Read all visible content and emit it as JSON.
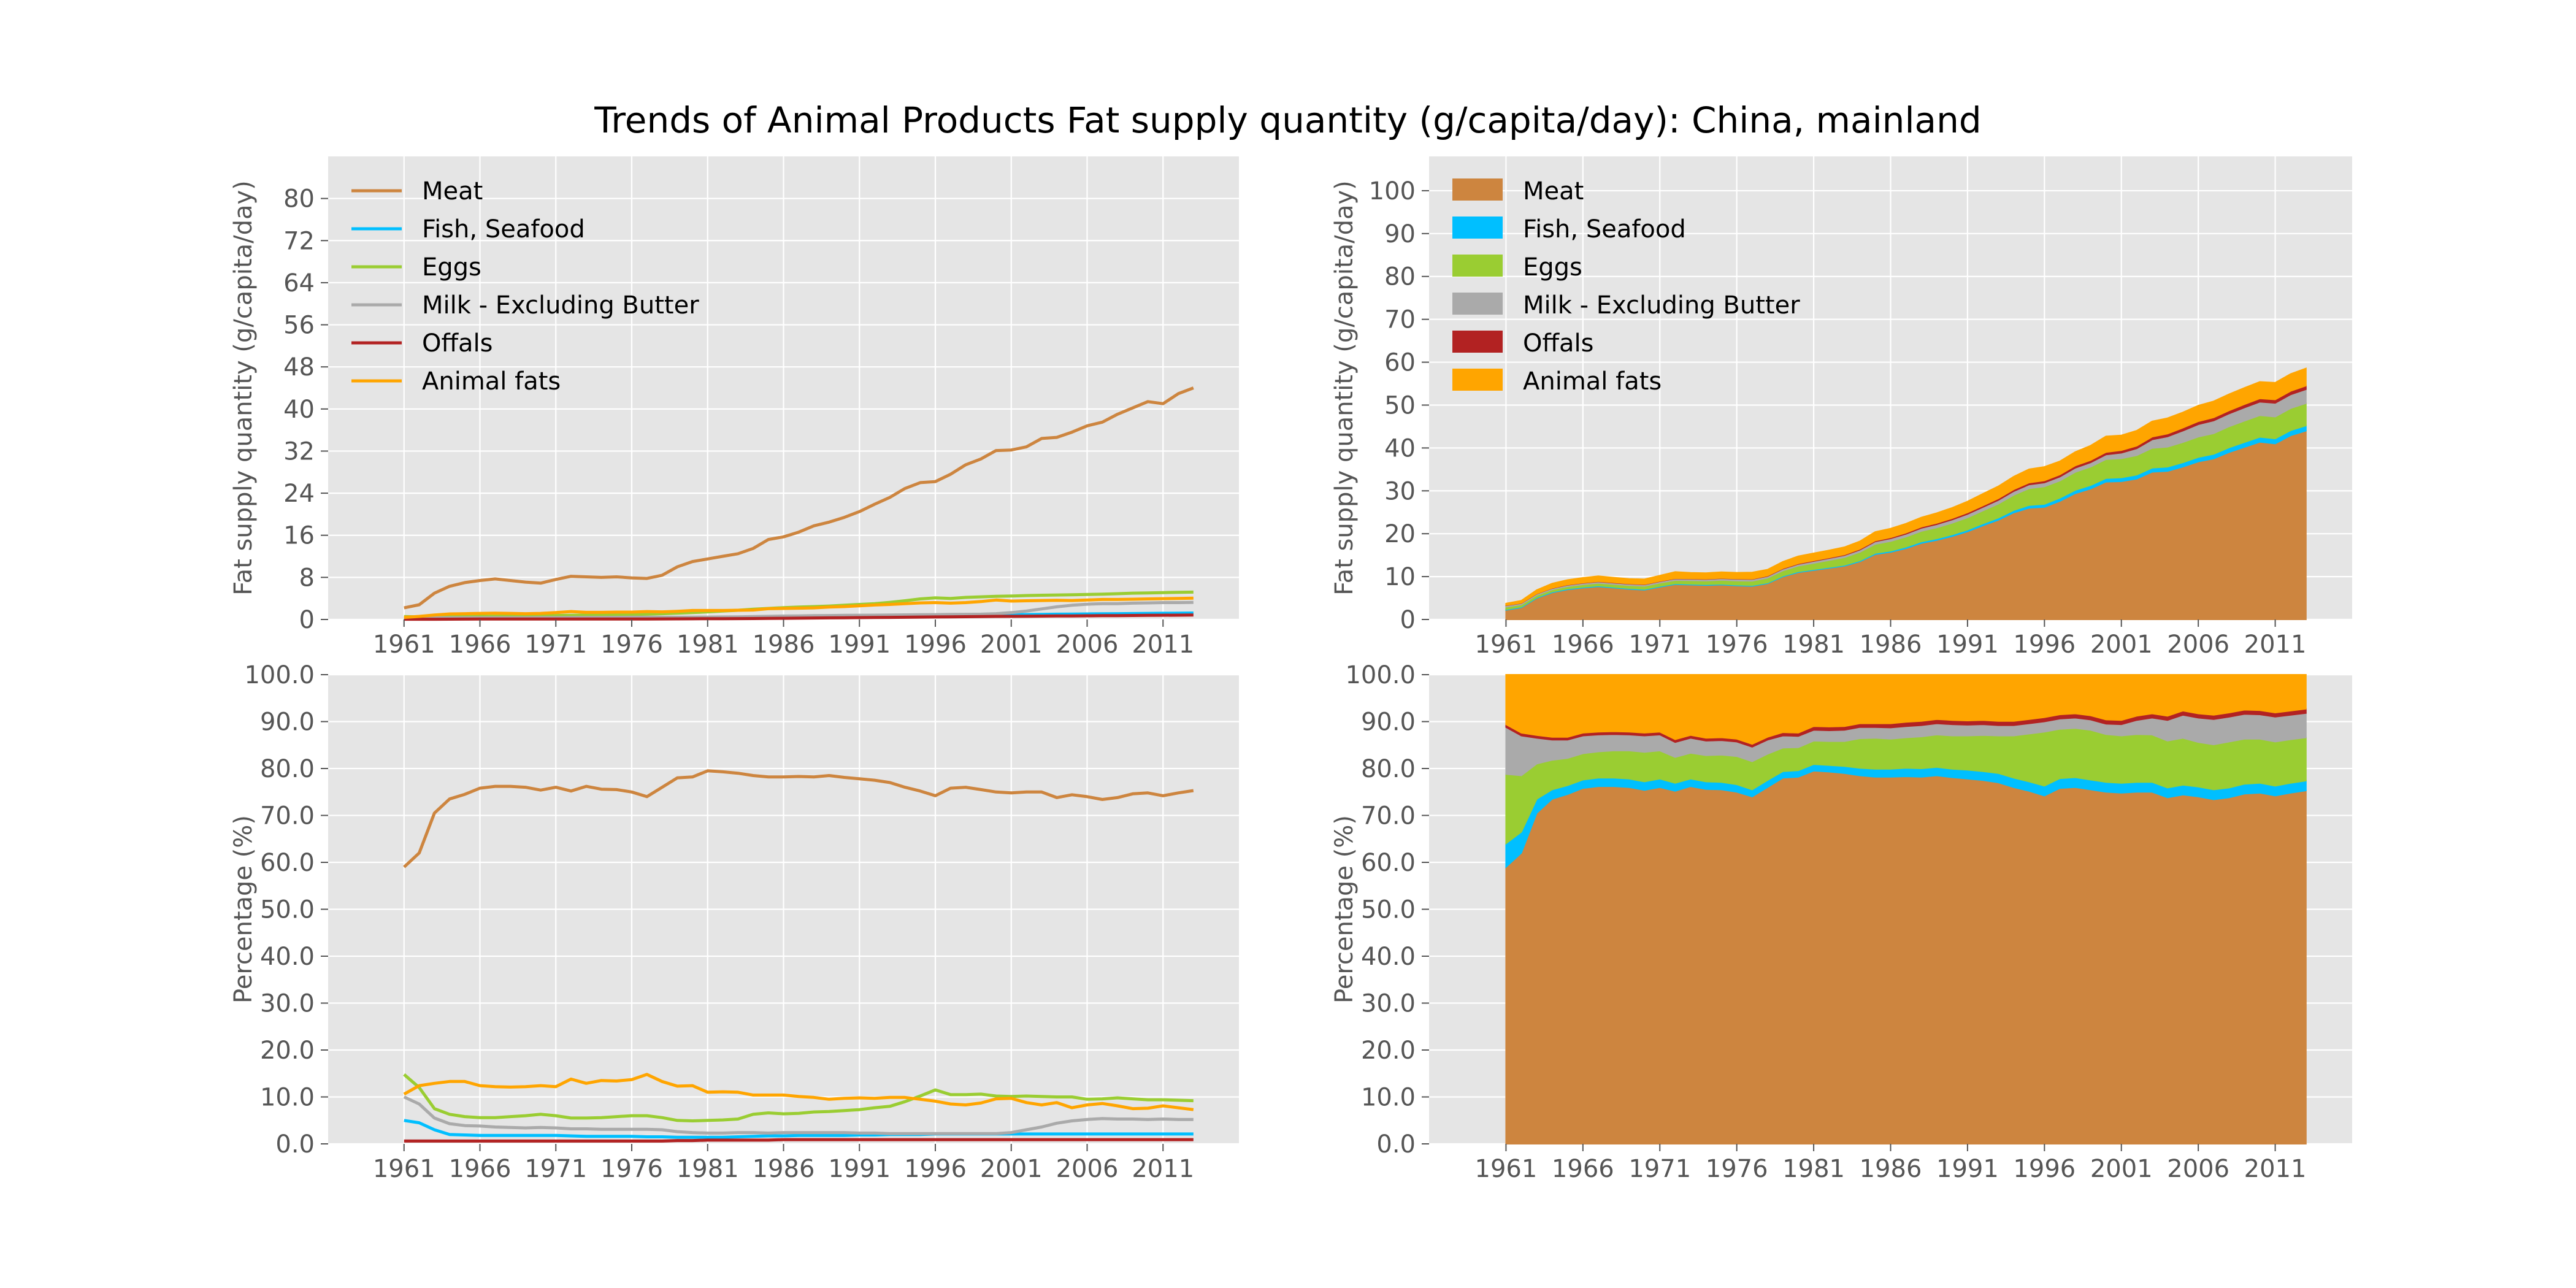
{
  "figure_title": "Trends of Animal Products Fat supply quantity (g/capita/day): China, mainland",
  "chart_data": [
    {
      "id": "abs-line",
      "type": "line",
      "ylabel": "Fat supply quantity (g/capita/day)",
      "xlim": [
        1956,
        2016
      ],
      "ylim": [
        0,
        88
      ],
      "yticks": [
        0,
        8,
        16,
        24,
        32,
        40,
        48,
        56,
        64,
        72,
        80
      ],
      "ytick_format": "int",
      "xticks": [
        1961,
        1966,
        1971,
        1976,
        1981,
        1986,
        1991,
        1996,
        2001,
        2006,
        2011
      ],
      "grid": true,
      "legend": "top-left",
      "series_source": "absolute"
    },
    {
      "id": "abs-stack",
      "type": "area",
      "stacked": true,
      "ylabel": "Fat supply quantity (g/capita/day)",
      "xlim": [
        1956,
        2016
      ],
      "ylim": [
        0,
        108
      ],
      "yticks": [
        0,
        10,
        20,
        30,
        40,
        50,
        60,
        70,
        80,
        90,
        100
      ],
      "ytick_format": "int",
      "xticks": [
        1961,
        1966,
        1971,
        1976,
        1981,
        1986,
        1991,
        1996,
        2001,
        2006,
        2011
      ],
      "grid": true,
      "legend": "top-left",
      "series_source": "absolute"
    },
    {
      "id": "pct-line",
      "type": "line",
      "ylabel": "Percentage (%)",
      "xlim": [
        1956,
        2016
      ],
      "ylim": [
        0,
        100
      ],
      "yticks": [
        0,
        10,
        20,
        30,
        40,
        50,
        60,
        70,
        80,
        90,
        100
      ],
      "ytick_format": "one-decimal",
      "xticks": [
        1961,
        1966,
        1971,
        1976,
        1981,
        1986,
        1991,
        1996,
        2001,
        2006,
        2011
      ],
      "grid": true,
      "series_source": "percent"
    },
    {
      "id": "pct-stack",
      "type": "area",
      "stacked": true,
      "ylabel": "Percentage (%)",
      "xlim": [
        1956,
        2016
      ],
      "ylim": [
        0,
        100
      ],
      "yticks": [
        0,
        10,
        20,
        30,
        40,
        50,
        60,
        70,
        80,
        90,
        100
      ],
      "ytick_format": "one-decimal",
      "xticks": [
        1961,
        1966,
        1971,
        1976,
        1981,
        1986,
        1991,
        1996,
        2001,
        2006,
        2011
      ],
      "grid": true,
      "series_source": "percent"
    }
  ],
  "series_absolute": {
    "years": [
      1961,
      1962,
      1963,
      1964,
      1965,
      1966,
      1967,
      1968,
      1969,
      1970,
      1971,
      1972,
      1973,
      1974,
      1975,
      1976,
      1977,
      1978,
      1979,
      1980,
      1981,
      1982,
      1983,
      1984,
      1985,
      1986,
      1987,
      1988,
      1989,
      1990,
      1991,
      1992,
      1993,
      1994,
      1995,
      1996,
      1997,
      1998,
      1999,
      2000,
      2001,
      2002,
      2003,
      2004,
      2005,
      2006,
      2007,
      2008,
      2009,
      2010,
      2011,
      2012,
      2013
    ],
    "series": [
      {
        "name": "Meat",
        "color": "#cd853f",
        "values": [
          2.2,
          2.8,
          5.0,
          6.3,
          7.0,
          7.4,
          7.7,
          7.4,
          7.1,
          6.9,
          7.6,
          8.2,
          8.1,
          8.0,
          8.1,
          7.9,
          7.8,
          8.4,
          10.0,
          11.0,
          11.5,
          12.0,
          12.5,
          13.5,
          15.2,
          15.7,
          16.6,
          17.8,
          18.5,
          19.4,
          20.5,
          21.9,
          23.2,
          24.9,
          26.0,
          26.2,
          27.6,
          29.4,
          30.5,
          32.1,
          32.2,
          32.8,
          34.4,
          34.6,
          35.6,
          36.8,
          37.5,
          39.0,
          40.2,
          41.4,
          41.0,
          42.9,
          44.0
        ]
      },
      {
        "name": "Fish, Seafood",
        "color": "#00bfff",
        "values": [
          0.18,
          0.18,
          0.18,
          0.18,
          0.18,
          0.18,
          0.18,
          0.18,
          0.18,
          0.18,
          0.18,
          0.18,
          0.18,
          0.18,
          0.18,
          0.18,
          0.18,
          0.18,
          0.19,
          0.2,
          0.2,
          0.2,
          0.22,
          0.25,
          0.28,
          0.3,
          0.33,
          0.36,
          0.38,
          0.4,
          0.43,
          0.47,
          0.52,
          0.58,
          0.65,
          0.7,
          0.74,
          0.77,
          0.8,
          0.85,
          0.9,
          0.93,
          0.96,
          1.0,
          1.02,
          1.05,
          1.08,
          1.1,
          1.12,
          1.15,
          1.18,
          1.2,
          1.22
        ]
      },
      {
        "name": "Eggs",
        "color": "#9acd32",
        "values": [
          0.55,
          0.5,
          0.5,
          0.5,
          0.55,
          0.58,
          0.62,
          0.65,
          0.68,
          0.72,
          0.75,
          0.78,
          0.82,
          0.85,
          0.9,
          0.95,
          1.0,
          1.1,
          1.2,
          1.3,
          1.45,
          1.6,
          1.75,
          1.95,
          2.1,
          2.25,
          2.35,
          2.45,
          2.55,
          2.7,
          2.85,
          3.0,
          3.25,
          3.55,
          3.9,
          4.1,
          4.0,
          4.2,
          4.3,
          4.4,
          4.45,
          4.55,
          4.6,
          4.65,
          4.7,
          4.75,
          4.8,
          4.9,
          5.0,
          5.05,
          5.1,
          5.15,
          5.2
        ]
      },
      {
        "name": "Milk - Excluding Butter",
        "color": "#aaaaaa",
        "values": [
          0.35,
          0.3,
          0.3,
          0.3,
          0.32,
          0.33,
          0.33,
          0.33,
          0.33,
          0.35,
          0.35,
          0.36,
          0.38,
          0.38,
          0.4,
          0.42,
          0.42,
          0.42,
          0.42,
          0.43,
          0.45,
          0.48,
          0.5,
          0.55,
          0.6,
          0.65,
          0.68,
          0.72,
          0.75,
          0.78,
          0.8,
          0.82,
          0.85,
          0.88,
          0.9,
          0.92,
          0.95,
          0.98,
          1.0,
          1.1,
          1.3,
          1.6,
          2.0,
          2.4,
          2.7,
          2.9,
          3.0,
          3.0,
          3.1,
          3.15,
          3.2,
          3.2,
          3.25
        ]
      },
      {
        "name": "Offals",
        "color": "#b22222",
        "values": [
          0.05,
          0.05,
          0.05,
          0.06,
          0.07,
          0.08,
          0.08,
          0.08,
          0.08,
          0.08,
          0.08,
          0.08,
          0.08,
          0.08,
          0.08,
          0.08,
          0.08,
          0.1,
          0.12,
          0.13,
          0.15,
          0.15,
          0.16,
          0.18,
          0.2,
          0.22,
          0.25,
          0.28,
          0.3,
          0.32,
          0.35,
          0.38,
          0.4,
          0.42,
          0.45,
          0.48,
          0.5,
          0.52,
          0.55,
          0.58,
          0.6,
          0.62,
          0.64,
          0.66,
          0.68,
          0.7,
          0.72,
          0.74,
          0.76,
          0.78,
          0.8,
          0.82,
          0.84
        ]
      },
      {
        "name": "Animal fats",
        "color": "#ffa500",
        "values": [
          0.4,
          0.58,
          0.85,
          1.05,
          1.1,
          1.15,
          1.2,
          1.15,
          1.1,
          1.15,
          1.3,
          1.5,
          1.35,
          1.35,
          1.4,
          1.4,
          1.5,
          1.45,
          1.55,
          1.7,
          1.7,
          1.7,
          1.75,
          1.8,
          2.05,
          2.1,
          2.15,
          2.2,
          2.35,
          2.45,
          2.6,
          2.75,
          2.85,
          3.0,
          3.15,
          3.2,
          3.1,
          3.2,
          3.4,
          3.7,
          3.5,
          3.55,
          3.6,
          3.65,
          3.6,
          3.7,
          3.8,
          3.8,
          3.85,
          3.9,
          3.95,
          4.0,
          4.05
        ]
      }
    ]
  },
  "series_percent": {
    "years": [
      1961,
      1962,
      1963,
      1964,
      1965,
      1966,
      1967,
      1968,
      1969,
      1970,
      1971,
      1972,
      1973,
      1974,
      1975,
      1976,
      1977,
      1978,
      1979,
      1980,
      1981,
      1982,
      1983,
      1984,
      1985,
      1986,
      1987,
      1988,
      1989,
      1990,
      1991,
      1992,
      1993,
      1994,
      1995,
      1996,
      1997,
      1998,
      1999,
      2000,
      2001,
      2002,
      2003,
      2004,
      2005,
      2006,
      2007,
      2008,
      2009,
      2010,
      2011,
      2012,
      2013
    ],
    "series": [
      {
        "name": "Meat",
        "color": "#cd853f",
        "values": [
          59.0,
          62.0,
          70.5,
          73.5,
          74.5,
          75.8,
          76.2,
          76.2,
          76.0,
          75.4,
          76.0,
          75.2,
          76.2,
          75.6,
          75.5,
          75.0,
          74.0,
          76.0,
          78.0,
          78.2,
          79.5,
          79.3,
          79.0,
          78.5,
          78.2,
          78.2,
          78.3,
          78.2,
          78.5,
          78.1,
          77.8,
          77.5,
          77.0,
          76.0,
          75.2,
          74.2,
          75.8,
          76.0,
          75.5,
          75.0,
          74.8,
          75.0,
          75.0,
          73.8,
          74.4,
          74.0,
          73.4,
          73.8,
          74.6,
          74.8,
          74.2,
          74.8,
          75.3
        ]
      },
      {
        "name": "Fish, Seafood",
        "color": "#00bfff",
        "values": [
          5.0,
          4.5,
          3.0,
          2.0,
          1.9,
          1.8,
          1.8,
          1.8,
          1.8,
          1.8,
          1.8,
          1.7,
          1.6,
          1.6,
          1.6,
          1.6,
          1.5,
          1.5,
          1.4,
          1.4,
          1.4,
          1.4,
          1.5,
          1.6,
          1.7,
          1.7,
          1.8,
          1.8,
          1.8,
          1.8,
          1.9,
          1.9,
          2.0,
          2.0,
          2.0,
          2.1,
          2.1,
          2.1,
          2.1,
          2.1,
          2.1,
          2.1,
          2.1,
          2.1,
          2.1,
          2.1,
          2.1,
          2.1,
          2.1,
          2.1,
          2.1,
          2.1,
          2.1
        ]
      },
      {
        "name": "Eggs",
        "color": "#9acd32",
        "values": [
          14.8,
          12.0,
          7.5,
          6.3,
          5.8,
          5.6,
          5.6,
          5.8,
          6.0,
          6.3,
          6.0,
          5.5,
          5.5,
          5.6,
          5.8,
          6.0,
          6.0,
          5.6,
          5.0,
          4.9,
          5.0,
          5.1,
          5.3,
          6.3,
          6.6,
          6.4,
          6.5,
          6.8,
          6.9,
          7.1,
          7.3,
          7.7,
          8.0,
          9.0,
          10.2,
          11.5,
          10.5,
          10.5,
          10.6,
          10.2,
          10.1,
          10.2,
          10.1,
          10.0,
          10.0,
          9.5,
          9.6,
          9.8,
          9.6,
          9.4,
          9.4,
          9.3,
          9.2
        ]
      },
      {
        "name": "Milk - Excluding Butter",
        "color": "#aaaaaa",
        "values": [
          10.0,
          8.5,
          5.5,
          4.3,
          3.9,
          3.8,
          3.6,
          3.5,
          3.4,
          3.5,
          3.4,
          3.2,
          3.2,
          3.1,
          3.1,
          3.1,
          3.1,
          3.0,
          2.6,
          2.4,
          2.3,
          2.3,
          2.4,
          2.4,
          2.3,
          2.4,
          2.4,
          2.4,
          2.4,
          2.4,
          2.3,
          2.3,
          2.2,
          2.2,
          2.2,
          2.2,
          2.2,
          2.2,
          2.2,
          2.2,
          2.4,
          3.0,
          3.6,
          4.4,
          4.9,
          5.2,
          5.4,
          5.3,
          5.3,
          5.2,
          5.3,
          5.2,
          5.2
        ]
      },
      {
        "name": "Offals",
        "color": "#b22222",
        "values": [
          0.6,
          0.6,
          0.6,
          0.6,
          0.6,
          0.6,
          0.6,
          0.6,
          0.6,
          0.6,
          0.6,
          0.6,
          0.6,
          0.6,
          0.6,
          0.6,
          0.6,
          0.6,
          0.7,
          0.7,
          0.8,
          0.8,
          0.8,
          0.8,
          0.8,
          0.9,
          0.9,
          0.9,
          0.9,
          0.9,
          0.9,
          0.9,
          0.9,
          0.9,
          0.9,
          0.9,
          0.9,
          0.9,
          0.9,
          0.9,
          0.9,
          0.9,
          0.9,
          0.9,
          0.9,
          0.9,
          0.9,
          0.9,
          0.9,
          0.9,
          0.9,
          0.9,
          0.9
        ]
      },
      {
        "name": "Animal fats",
        "color": "#ffa500",
        "values": [
          10.6,
          12.4,
          12.9,
          13.3,
          13.3,
          12.4,
          12.2,
          12.1,
          12.2,
          12.4,
          12.2,
          13.8,
          12.9,
          13.5,
          13.4,
          13.7,
          14.8,
          13.3,
          12.3,
          12.4,
          11.0,
          11.1,
          11.0,
          10.4,
          10.4,
          10.4,
          10.1,
          9.9,
          9.5,
          9.7,
          9.8,
          9.7,
          9.9,
          9.9,
          9.5,
          9.1,
          8.5,
          8.3,
          8.7,
          9.6,
          9.7,
          8.8,
          8.3,
          8.8,
          7.7,
          8.3,
          8.6,
          8.1,
          7.5,
          7.6,
          8.1,
          7.7,
          7.3
        ]
      }
    ]
  }
}
